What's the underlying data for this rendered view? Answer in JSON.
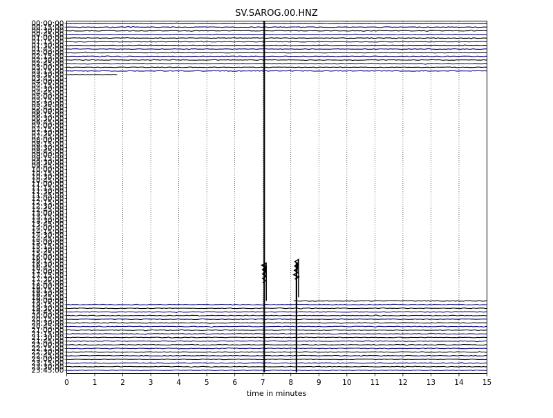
{
  "chart_data": {
    "type": "line",
    "title": "SV.SAROG.00.HNZ",
    "xlabel": "time in minutes",
    "ylabel": "",
    "xlim": [
      0,
      15
    ],
    "x_ticks": [
      "0",
      "1",
      "2",
      "3",
      "4",
      "5",
      "6",
      "7",
      "8",
      "9",
      "10",
      "11",
      "12",
      "13",
      "14",
      "15"
    ],
    "row_labels": [
      "00:00:00",
      "00:15:00",
      "00:30:00",
      "00:45:00",
      "01:00:00",
      "01:15:00",
      "01:30:00",
      "01:45:00",
      "02:00:00",
      "02:15:00",
      "02:30:00",
      "02:45:00",
      "03:00:00",
      "03:15:00",
      "03:30:00",
      "03:45:00",
      "04:00:00",
      "04:15:00",
      "04:30:00",
      "04:45:00",
      "05:00:00",
      "05:15:00",
      "05:30:00",
      "05:45:00",
      "06:00:00",
      "06:15:00",
      "06:30:00",
      "06:45:00",
      "07:00:00",
      "07:15:00",
      "07:30:00",
      "07:45:00",
      "08:00:00",
      "08:15:00",
      "08:30:00",
      "08:45:00",
      "09:00:00",
      "09:15:00",
      "09:30:00",
      "09:45:00",
      "10:00:00",
      "10:15:00",
      "10:30:00",
      "10:45:00",
      "11:00:00",
      "11:15:00",
      "11:30:00",
      "11:45:00",
      "12:00:00",
      "12:15:00",
      "12:30:00",
      "12:45:00",
      "13:00:00",
      "13:15:00",
      "13:30:00",
      "13:45:00",
      "14:00:00",
      "14:15:00",
      "14:30:00",
      "14:45:00",
      "15:00:00",
      "15:15:00",
      "15:30:00",
      "15:45:00",
      "16:00:00",
      "16:15:00",
      "16:30:00",
      "16:45:00",
      "17:00:00",
      "17:15:00",
      "17:30:00",
      "17:45:00",
      "18:00:00",
      "18:15:00",
      "18:30:00",
      "18:45:00",
      "19:00:00",
      "19:15:00",
      "19:30:00",
      "19:45:00",
      "20:00:00",
      "20:15:00",
      "20:30:00",
      "20:45:00",
      "21:00:00",
      "21:15:00",
      "21:30:00",
      "21:45:00",
      "22:00:00",
      "22:15:00",
      "22:30:00",
      "22:45:00",
      "23:00:00",
      "23:15:00",
      "23:30:00",
      "23:45:00"
    ],
    "data_gap": {
      "start_row": "03:30:00",
      "end_minute": 1.8,
      "resume_row": "19:00:00",
      "resume_minute": 8.1
    },
    "events": [
      {
        "minute": 7.05,
        "from_row": "00:00:00",
        "to_row": "23:45:00",
        "peak_row": "16:30:00"
      },
      {
        "minute": 8.2,
        "from_row": "16:30:00",
        "to_row": "23:45:00",
        "peak_row": "16:15:00"
      }
    ],
    "grid": "x-dotted",
    "colors": {
      "trace_a": "#000000",
      "trace_b": "#000080",
      "grid": "#000000"
    }
  }
}
